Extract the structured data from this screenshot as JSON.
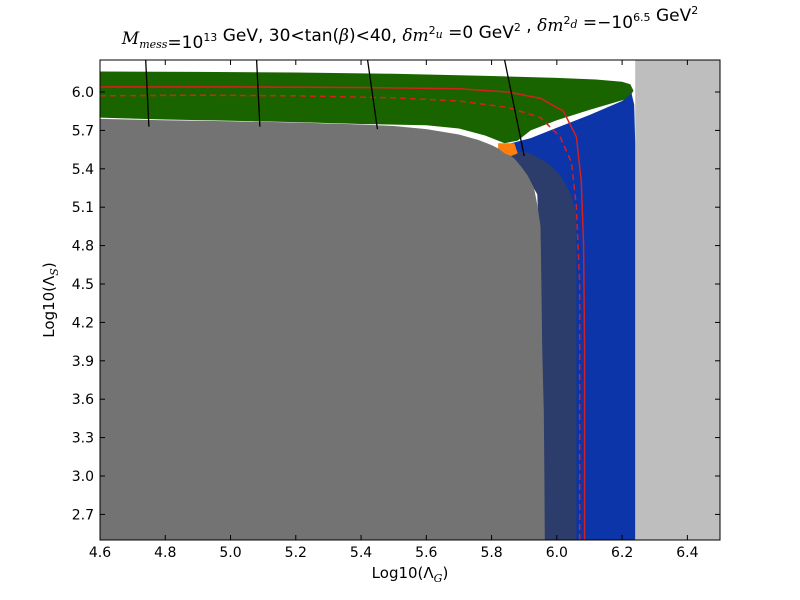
{
  "chart_data": {
    "type": "contour-region",
    "title": {
      "parts": [
        {
          "text": "M",
          "style": "it"
        },
        {
          "text": "mess",
          "style": "it-sub"
        },
        {
          "text": "=10",
          "style": "normal"
        },
        {
          "text": "13",
          "style": "sup"
        },
        {
          "text": " GeV, 30<tan(",
          "style": "normal"
        },
        {
          "text": "β",
          "style": "it"
        },
        {
          "text": ")<40, ",
          "style": "normal"
        },
        {
          "text": "δm",
          "style": "it"
        },
        {
          "text": "2",
          "style": "sup-stack"
        },
        {
          "text": "u",
          "style": "it-sub"
        },
        {
          "text": " =0 GeV",
          "style": "normal"
        },
        {
          "text": "2",
          "style": "sup"
        },
        {
          "text": " , ",
          "style": "normal"
        },
        {
          "text": "δm",
          "style": "it"
        },
        {
          "text": "2",
          "style": "sup-stack"
        },
        {
          "text": "d",
          "style": "it-sub"
        },
        {
          "text": " =−10",
          "style": "normal"
        },
        {
          "text": "6.5",
          "style": "sup"
        },
        {
          "text": " GeV",
          "style": "normal"
        },
        {
          "text": "2",
          "style": "sup"
        }
      ]
    },
    "xlabel": {
      "main": "Log10(Λ",
      "sub": "G",
      "tail": ")"
    },
    "ylabel": {
      "main": "Log10(Λ",
      "sub": "S",
      "tail": ")"
    },
    "xlim": [
      4.6,
      6.5
    ],
    "ylim": [
      2.5,
      6.25
    ],
    "xticks": [
      "4.6",
      "4.8",
      "5.0",
      "5.2",
      "5.4",
      "5.6",
      "5.8",
      "6.0",
      "6.2",
      "6.4"
    ],
    "yticks": [
      "2.7",
      "3.0",
      "3.3",
      "3.6",
      "3.9",
      "4.2",
      "4.5",
      "4.8",
      "5.1",
      "5.4",
      "5.7",
      "6.0"
    ],
    "colors": {
      "light_gray": "#bebebe",
      "green": "#1a6400",
      "blue": "#0b35a8",
      "gray": "#737373",
      "navy": "#2c3d6b",
      "orange": "#ff7f0e",
      "red": "#d42020",
      "black": "#000000"
    },
    "regions": [
      {
        "color": "light_gray",
        "points": [
          [
            6.24,
            6.25
          ],
          [
            6.5,
            6.25
          ],
          [
            6.5,
            2.5
          ],
          [
            6.24,
            2.5
          ]
        ]
      },
      {
        "color": "green",
        "points": [
          [
            4.6,
            6.16
          ],
          [
            4.9,
            6.157
          ],
          [
            5.2,
            6.152
          ],
          [
            5.5,
            6.142
          ],
          [
            5.8,
            6.125
          ],
          [
            6.0,
            6.11
          ],
          [
            6.12,
            6.098
          ],
          [
            6.2,
            6.08
          ],
          [
            6.225,
            6.06
          ],
          [
            6.235,
            6.01
          ],
          [
            6.22,
            5.95
          ],
          [
            6.1,
            5.86
          ],
          [
            6.0,
            5.78
          ],
          [
            5.92,
            5.7
          ],
          [
            5.88,
            5.62
          ],
          [
            5.84,
            5.6
          ],
          [
            5.78,
            5.66
          ],
          [
            5.7,
            5.715
          ],
          [
            5.6,
            5.74
          ],
          [
            5.4,
            5.75
          ],
          [
            5.2,
            5.765
          ],
          [
            5.0,
            5.775
          ],
          [
            4.8,
            5.785
          ],
          [
            4.7,
            5.792
          ],
          [
            4.6,
            5.8
          ]
        ]
      },
      {
        "color": "blue",
        "points": [
          [
            5.86,
            5.6
          ],
          [
            5.92,
            5.64
          ],
          [
            6.0,
            5.72
          ],
          [
            6.1,
            5.82
          ],
          [
            6.2,
            5.93
          ],
          [
            6.222,
            5.97
          ],
          [
            6.228,
            6.0
          ],
          [
            6.237,
            5.9
          ],
          [
            6.24,
            5.6
          ],
          [
            6.24,
            2.5
          ],
          [
            5.96,
            2.5
          ],
          [
            5.96,
            5.2
          ],
          [
            5.9,
            5.45
          ],
          [
            5.85,
            5.56
          ]
        ]
      },
      {
        "color": "navy",
        "points": [
          [
            5.84,
            5.56
          ],
          [
            5.92,
            5.52
          ],
          [
            5.97,
            5.45
          ],
          [
            6.01,
            5.35
          ],
          [
            6.04,
            5.22
          ],
          [
            6.06,
            5.05
          ],
          [
            6.06,
            2.5
          ],
          [
            5.95,
            2.5
          ],
          [
            5.95,
            4.5
          ],
          [
            5.94,
            5.2
          ],
          [
            5.9,
            5.38
          ],
          [
            5.86,
            5.48
          ]
        ]
      },
      {
        "color": "gray",
        "points": [
          [
            4.6,
            5.79
          ],
          [
            4.8,
            5.78
          ],
          [
            5.0,
            5.772
          ],
          [
            5.2,
            5.762
          ],
          [
            5.4,
            5.746
          ],
          [
            5.5,
            5.734
          ],
          [
            5.6,
            5.71
          ],
          [
            5.7,
            5.668
          ],
          [
            5.76,
            5.625
          ],
          [
            5.8,
            5.585
          ],
          [
            5.84,
            5.535
          ],
          [
            5.87,
            5.48
          ],
          [
            5.89,
            5.42
          ],
          [
            5.91,
            5.35
          ],
          [
            5.93,
            5.25
          ],
          [
            5.94,
            5.12
          ],
          [
            5.95,
            4.95
          ],
          [
            5.952,
            4.6
          ],
          [
            5.955,
            4.0
          ],
          [
            5.96,
            3.5
          ],
          [
            5.962,
            3.0
          ],
          [
            5.963,
            2.5
          ],
          [
            4.6,
            2.5
          ]
        ]
      },
      {
        "color": "orange",
        "points": [
          [
            5.82,
            5.6
          ],
          [
            5.87,
            5.6
          ],
          [
            5.88,
            5.52
          ],
          [
            5.86,
            5.5
          ],
          [
            5.84,
            5.52
          ],
          [
            5.82,
            5.56
          ]
        ]
      }
    ],
    "lines": [
      {
        "color": "red",
        "dash": false,
        "points": [
          [
            4.6,
            6.04
          ],
          [
            5.0,
            6.04
          ],
          [
            5.4,
            6.035
          ],
          [
            5.7,
            6.025
          ],
          [
            5.85,
            6.0
          ],
          [
            5.95,
            5.95
          ],
          [
            6.02,
            5.85
          ],
          [
            6.06,
            5.65
          ],
          [
            6.075,
            5.3
          ],
          [
            6.082,
            4.8
          ],
          [
            6.085,
            4.0
          ],
          [
            6.085,
            2.5
          ]
        ]
      },
      {
        "color": "red",
        "dash": true,
        "points": [
          [
            4.6,
            5.97
          ],
          [
            4.9,
            5.975
          ],
          [
            5.2,
            5.97
          ],
          [
            5.5,
            5.955
          ],
          [
            5.7,
            5.93
          ],
          [
            5.85,
            5.88
          ],
          [
            5.95,
            5.8
          ],
          [
            6.01,
            5.65
          ],
          [
            6.045,
            5.45
          ],
          [
            6.06,
            5.1
          ],
          [
            6.07,
            4.5
          ],
          [
            6.07,
            3.5
          ],
          [
            6.07,
            2.5
          ]
        ]
      },
      {
        "color": "black",
        "dash": false,
        "points": [
          [
            4.74,
            6.25
          ],
          [
            4.75,
            5.73
          ]
        ]
      },
      {
        "color": "black",
        "dash": false,
        "points": [
          [
            5.08,
            6.25
          ],
          [
            5.09,
            5.73
          ]
        ]
      },
      {
        "color": "black",
        "dash": false,
        "points": [
          [
            5.42,
            6.25
          ],
          [
            5.45,
            5.71
          ]
        ]
      },
      {
        "color": "black",
        "dash": false,
        "points": [
          [
            5.84,
            6.25
          ],
          [
            5.88,
            5.75
          ],
          [
            5.9,
            5.5
          ]
        ]
      }
    ]
  }
}
